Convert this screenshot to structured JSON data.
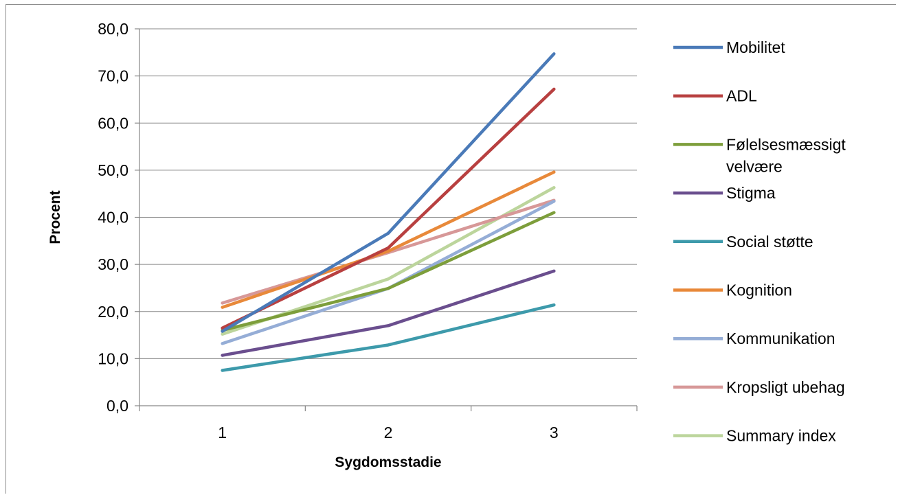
{
  "chart_data": {
    "type": "line",
    "xlabel": "Sygdomsstadie",
    "ylabel": "Procent",
    "categories": [
      "1",
      "2",
      "3"
    ],
    "ylim": [
      0,
      80
    ],
    "yticks": [
      "0,0",
      "10,0",
      "20,0",
      "30,0",
      "40,0",
      "50,0",
      "60,0",
      "70,0",
      "80,0"
    ],
    "grid": "horizontal",
    "legend_position": "right",
    "series": [
      {
        "name": "Mobilitet",
        "color": "#4a7ab8",
        "values": [
          15.8,
          36.6,
          74.7
        ]
      },
      {
        "name": "ADL",
        "color": "#b84040",
        "values": [
          16.5,
          33.5,
          67.2
        ]
      },
      {
        "name": "Følelsesmæssigt velvære",
        "color": "#7d9e3b",
        "values": [
          16.0,
          24.9,
          41.0
        ]
      },
      {
        "name": "Stigma",
        "color": "#6a4e8e",
        "values": [
          10.7,
          17.0,
          28.6
        ]
      },
      {
        "name": "Social støtte",
        "color": "#3d9aab",
        "values": [
          7.5,
          12.9,
          21.4
        ]
      },
      {
        "name": "Kognition",
        "color": "#e8893a",
        "values": [
          20.9,
          32.8,
          49.6
        ]
      },
      {
        "name": "Kommunikation",
        "color": "#95add6",
        "values": [
          13.2,
          24.9,
          43.4
        ]
      },
      {
        "name": "Kropsligt ubehag",
        "color": "#d79898",
        "values": [
          21.8,
          32.5,
          43.6
        ]
      },
      {
        "name": "Summary index",
        "color": "#bcd59c",
        "values": [
          15.2,
          26.9,
          46.3
        ]
      }
    ]
  }
}
